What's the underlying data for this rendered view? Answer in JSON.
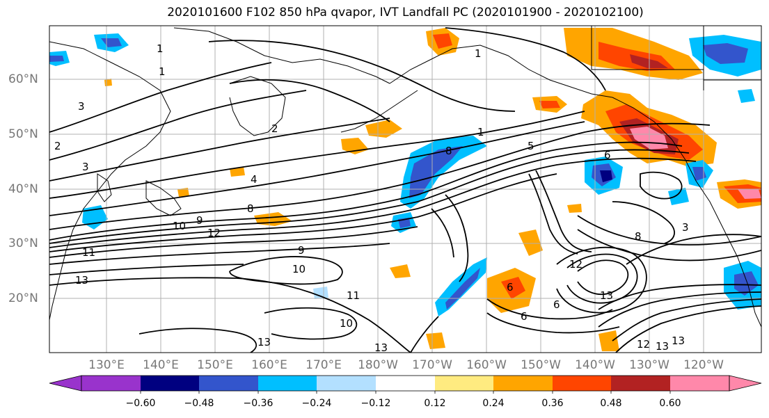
{
  "title": "2020101600 F102 850 hPa qvapor, IVT Landfall PC (2020101900 - 2020102100)",
  "lat_labels": [
    "60°N",
    "50°N",
    "40°N",
    "30°N",
    "20°N"
  ],
  "lon_labels": [
    "130°E",
    "140°E",
    "150°E",
    "160°E",
    "170°E",
    "180°W",
    "170°W",
    "160°W",
    "150°W",
    "140°W",
    "130°W",
    "120°W"
  ],
  "colorbar": {
    "tick_labels": [
      "−0.60",
      "−0.48",
      "−0.36",
      "−0.24",
      "−0.12",
      "0.12",
      "0.24",
      "0.36",
      "0.48",
      "0.60"
    ],
    "colors": [
      "#9933cc",
      "#000080",
      "#3355cc",
      "#00bfff",
      "#b3e0ff",
      "#ffffff",
      "#ffeb80",
      "#ffa500",
      "#ff4500",
      "#b22222",
      "#ff88aa"
    ]
  },
  "contour_labels": [
    "1",
    "1",
    "1",
    "2",
    "3",
    "2",
    "3",
    "4",
    "5",
    "6",
    "8",
    "9",
    "10",
    "11",
    "12",
    "13",
    "13",
    "10",
    "9",
    "11",
    "13",
    "10",
    "13",
    "12",
    "6",
    "6",
    "6",
    "3",
    "1",
    "8",
    "13",
    "12",
    "13",
    "8"
  ]
}
